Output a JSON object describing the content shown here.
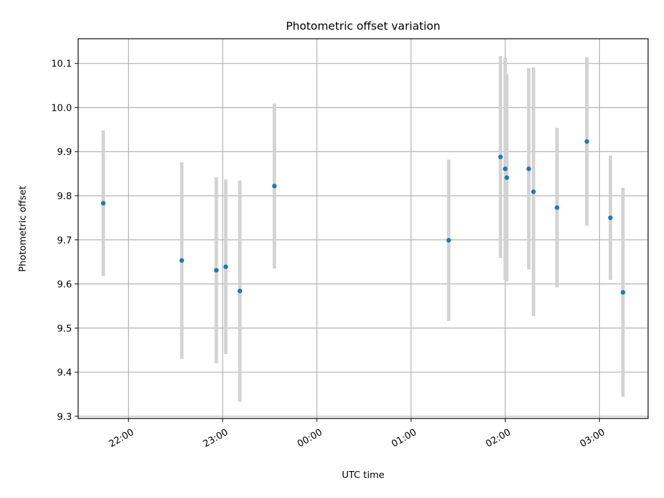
{
  "chart_data": {
    "type": "scatter",
    "title": "Photometric offset variation",
    "xlabel": "UTC time",
    "ylabel": "Photometric offset",
    "x_tick_labels": [
      "22:00",
      "23:00",
      "00:00",
      "01:00",
      "02:00",
      "03:00"
    ],
    "x_tick_times": [
      "22:00",
      "23:00",
      "00:00",
      "01:00",
      "02:00",
      "03:00"
    ],
    "y_tick_labels": [
      "9.3",
      "9.4",
      "9.5",
      "9.6",
      "9.7",
      "9.8",
      "9.9",
      "10.0",
      "10.1"
    ],
    "y_ticks": [
      9.3,
      9.4,
      9.5,
      9.6,
      9.7,
      9.8,
      9.9,
      10.0,
      10.1
    ],
    "xlim": [
      "21:28",
      "03:31"
    ],
    "ylim": [
      9.295,
      10.156
    ],
    "grid": true,
    "point_color": "#1f77b4",
    "errorbar_color": "#d3d3d3",
    "points": [
      {
        "time": "21:44",
        "y": 9.783,
        "err": 0.165
      },
      {
        "time": "22:34",
        "y": 9.653,
        "err": 0.223
      },
      {
        "time": "22:56",
        "y": 9.631,
        "err": 0.211
      },
      {
        "time": "23:02",
        "y": 9.639,
        "err": 0.198
      },
      {
        "time": "23:11",
        "y": 9.584,
        "err": 0.251
      },
      {
        "time": "23:33",
        "y": 9.822,
        "err": 0.187
      },
      {
        "time": "01:24",
        "y": 9.699,
        "err": 0.183
      },
      {
        "time": "01:57",
        "y": 9.888,
        "err": 0.229
      },
      {
        "time": "02:00",
        "y": 9.861,
        "err": 0.253
      },
      {
        "time": "02:01",
        "y": 9.841,
        "err": 0.235
      },
      {
        "time": "02:15",
        "y": 9.861,
        "err": 0.228
      },
      {
        "time": "02:18",
        "y": 9.809,
        "err": 0.282
      },
      {
        "time": "02:33",
        "y": 9.773,
        "err": 0.181
      },
      {
        "time": "02:52",
        "y": 9.923,
        "err": 0.191
      },
      {
        "time": "03:07",
        "y": 9.75,
        "err": 0.141
      },
      {
        "time": "03:15",
        "y": 9.581,
        "err": 0.237
      }
    ]
  }
}
